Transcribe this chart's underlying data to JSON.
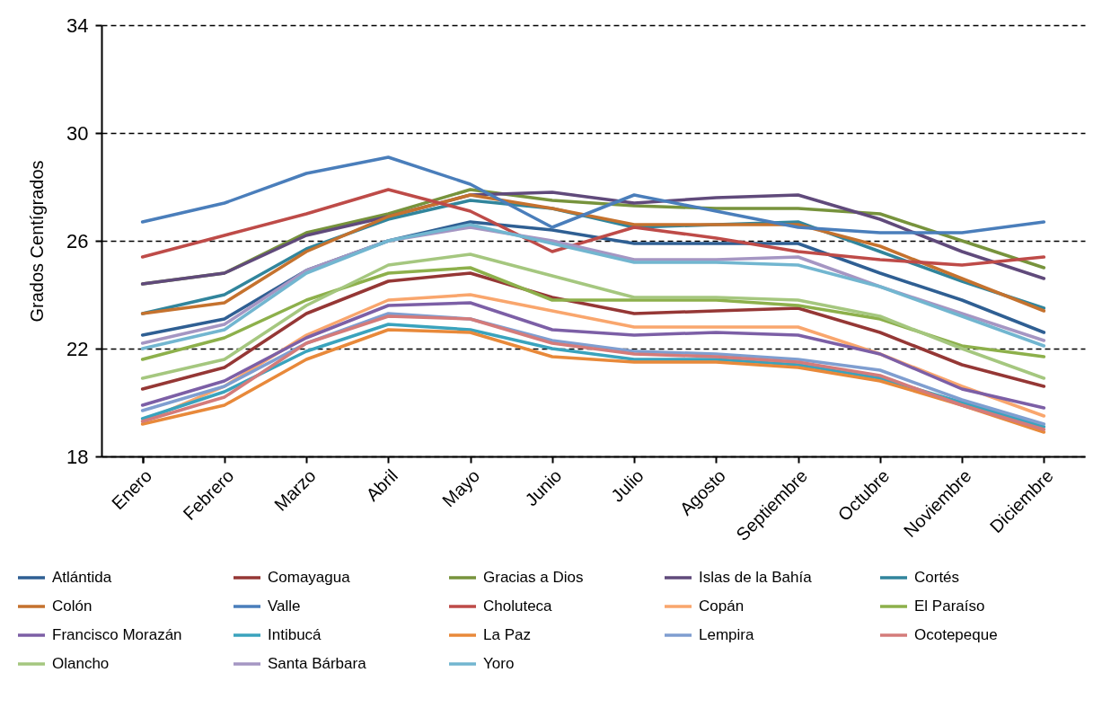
{
  "chart_data": {
    "type": "line",
    "ylabel": "Grados Centígrados",
    "categories": [
      "Enero",
      "Febrero",
      "Marzo",
      "Abril",
      "Mayo",
      "Junio",
      "Julio",
      "Agosto",
      "Septiembre",
      "Octubre",
      "Noviembre",
      "Diciembre"
    ],
    "ylim": [
      18,
      34
    ],
    "yticks": [
      18,
      22,
      26,
      30,
      34
    ],
    "grid": "y",
    "legend": "bottom",
    "line_style": "solid",
    "series": [
      {
        "name": "Atlántida",
        "color": "#2f5f93",
        "values": [
          22.5,
          23.1,
          24.9,
          26.0,
          26.7,
          26.4,
          25.9,
          25.9,
          25.9,
          24.8,
          23.8,
          22.6
        ]
      },
      {
        "name": "Comayagua",
        "color": "#953735",
        "values": [
          20.5,
          21.3,
          23.3,
          24.5,
          24.8,
          23.9,
          23.3,
          23.4,
          23.5,
          22.6,
          21.4,
          20.6
        ]
      },
      {
        "name": "Gracias a Dios",
        "color": "#77933c",
        "values": [
          24.4,
          24.8,
          26.3,
          27.0,
          27.9,
          27.5,
          27.3,
          27.2,
          27.2,
          27.0,
          26.0,
          25.0
        ]
      },
      {
        "name": "Islas de la Bahía",
        "color": "#604a7b",
        "values": [
          24.4,
          24.8,
          26.2,
          26.9,
          27.7,
          27.8,
          27.4,
          27.6,
          27.7,
          26.8,
          25.6,
          24.6
        ]
      },
      {
        "name": "Cortés",
        "color": "#31859c",
        "values": [
          23.3,
          24.0,
          25.7,
          26.8,
          27.5,
          27.2,
          26.5,
          26.6,
          26.7,
          25.6,
          24.5,
          23.5
        ]
      },
      {
        "name": "Colón",
        "color": "#c5722e",
        "values": [
          23.3,
          23.7,
          25.6,
          26.9,
          27.7,
          27.2,
          26.6,
          26.6,
          26.6,
          25.8,
          24.6,
          23.4
        ]
      },
      {
        "name": "Valle",
        "color": "#4a7ebb",
        "values": [
          26.7,
          27.4,
          28.5,
          29.1,
          28.1,
          26.5,
          27.7,
          27.1,
          26.5,
          26.3,
          26.3,
          26.7
        ]
      },
      {
        "name": "Choluteca",
        "color": "#be4b48",
        "values": [
          25.4,
          26.2,
          27.0,
          27.9,
          27.1,
          25.6,
          26.5,
          26.1,
          25.6,
          25.3,
          25.1,
          25.4
        ]
      },
      {
        "name": "Copán",
        "color": "#f9a66d",
        "values": [
          19.3,
          20.6,
          22.5,
          23.8,
          24.0,
          23.4,
          22.8,
          22.8,
          22.8,
          21.8,
          20.6,
          19.5
        ]
      },
      {
        "name": "El Paraíso",
        "color": "#8db04b",
        "values": [
          21.6,
          22.4,
          23.8,
          24.8,
          25.0,
          23.8,
          23.8,
          23.8,
          23.6,
          23.1,
          22.1,
          21.7
        ]
      },
      {
        "name": "Francisco Morazán",
        "color": "#7c5fa6",
        "values": [
          19.9,
          20.8,
          22.4,
          23.6,
          23.7,
          22.7,
          22.5,
          22.6,
          22.5,
          21.8,
          20.5,
          19.8
        ]
      },
      {
        "name": "Intibucá",
        "color": "#3aa3bd",
        "values": [
          19.4,
          20.4,
          21.9,
          22.9,
          22.7,
          22.0,
          21.6,
          21.6,
          21.4,
          20.9,
          20.0,
          19.1
        ]
      },
      {
        "name": "La Paz",
        "color": "#e8893a",
        "values": [
          19.2,
          19.9,
          21.6,
          22.7,
          22.6,
          21.7,
          21.5,
          21.5,
          21.3,
          20.8,
          19.9,
          18.9
        ]
      },
      {
        "name": "Lempira",
        "color": "#7f9ed0",
        "values": [
          19.7,
          20.6,
          22.2,
          23.3,
          23.1,
          22.3,
          21.9,
          21.8,
          21.6,
          21.2,
          20.1,
          19.2
        ]
      },
      {
        "name": "Ocotepeque",
        "color": "#d47b7a",
        "values": [
          19.3,
          20.2,
          22.2,
          23.2,
          23.1,
          22.2,
          21.8,
          21.7,
          21.5,
          21.0,
          19.9,
          19.0
        ]
      },
      {
        "name": "Olancho",
        "color": "#a5c77f",
        "values": [
          20.9,
          21.6,
          23.6,
          25.1,
          25.5,
          24.7,
          23.9,
          23.9,
          23.8,
          23.2,
          22.0,
          20.9
        ]
      },
      {
        "name": "Santa Bárbara",
        "color": "#a596c3",
        "values": [
          22.2,
          22.9,
          24.9,
          26.0,
          26.5,
          26.0,
          25.3,
          25.3,
          25.4,
          24.3,
          23.3,
          22.3
        ]
      },
      {
        "name": "Yoro",
        "color": "#72b6d0",
        "values": [
          22.0,
          22.7,
          24.8,
          26.0,
          26.6,
          25.9,
          25.2,
          25.2,
          25.1,
          24.3,
          23.2,
          22.1
        ]
      }
    ]
  }
}
